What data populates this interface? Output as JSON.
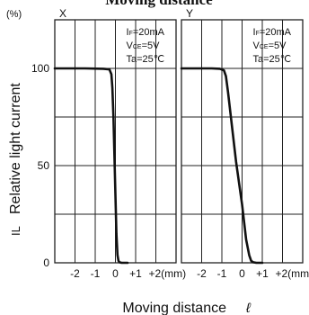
{
  "chart_data": [
    {
      "type": "line",
      "title": "Moving distance",
      "panel_label": "X",
      "ylabel": "Relative light current",
      "ylabel_symbol": "IL",
      "y_unit": "(%)",
      "xlabel": "Moving distance",
      "xlabel_symbol": "ℓ",
      "xlim": [
        -3,
        3
      ],
      "ylim": [
        0,
        100
      ],
      "x_ticks": [
        -2,
        -1,
        0,
        1,
        2
      ],
      "x_tick_labels": [
        "-2",
        "-1",
        "0",
        "+1",
        "+2(mm)"
      ],
      "y_ticks": [
        0,
        50,
        100
      ],
      "y_tick_labels": [
        "0",
        "50",
        "100"
      ],
      "grid": true,
      "conditions": [
        "IF=20mA",
        "VCE=5V",
        "Ta=25℃"
      ],
      "series": [
        {
          "x": [
            -3,
            -1.5,
            -0.6,
            -0.3,
            -0.2,
            -0.15,
            -0.1,
            -0.05,
            0.0,
            0.05,
            0.1,
            0.15,
            0.2,
            0.3,
            0.6
          ],
          "y": [
            100,
            100,
            99.8,
            99.5,
            97,
            90,
            75,
            55,
            35,
            15,
            4,
            1,
            0.3,
            0,
            0
          ]
        }
      ]
    },
    {
      "type": "line",
      "panel_label": "Y",
      "xlim": [
        -3,
        3
      ],
      "ylim": [
        0,
        100
      ],
      "x_ticks": [
        -2,
        -1,
        0,
        1,
        2
      ],
      "x_tick_labels": [
        "-2",
        "-1",
        "0",
        "+1",
        "+2(mm"
      ],
      "grid": true,
      "conditions": [
        "IF=20mA",
        "VCE=5V",
        "Ta=25℃"
      ],
      "series": [
        {
          "x": [
            -3,
            -1.5,
            -1.1,
            -0.9,
            -0.8,
            -0.7,
            -0.5,
            -0.3,
            0.0,
            0.2,
            0.35,
            0.45,
            0.55,
            0.7,
            1.0
          ],
          "y": [
            100,
            100,
            99.8,
            99,
            96,
            88,
            70,
            52,
            30,
            12,
            4,
            1,
            0.3,
            0,
            0
          ]
        }
      ]
    }
  ],
  "colors": {
    "line": "#111111",
    "grid": "#222222",
    "background": "#ffffff"
  }
}
